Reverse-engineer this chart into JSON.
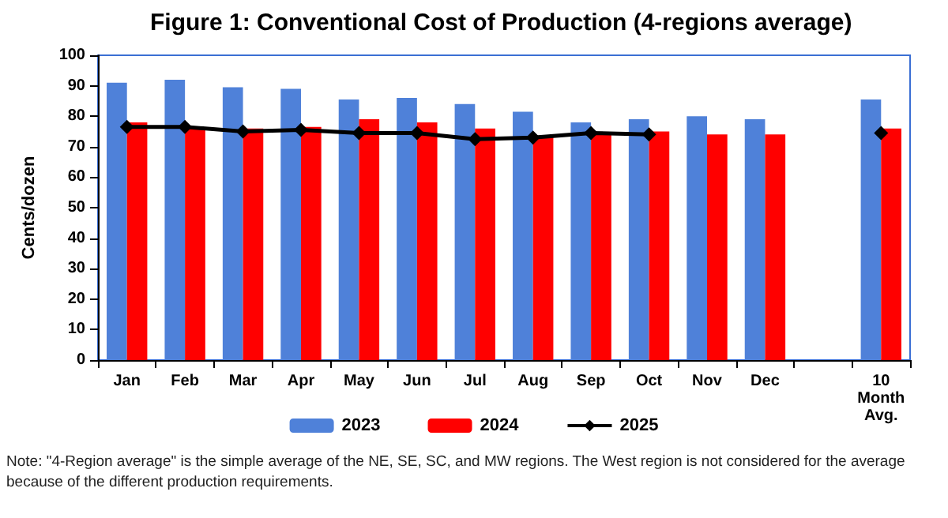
{
  "chart_data": {
    "type": "bar",
    "title": "Figure 1: Conventional Cost of Production (4-regions average)",
    "ylabel": "Cents/dozen",
    "categories": [
      "Jan",
      "Feb",
      "Mar",
      "Apr",
      "May",
      "Jun",
      "Jul",
      "Aug",
      "Sep",
      "Oct",
      "Nov",
      "Dec",
      null,
      "10 Month Avg."
    ],
    "series": [
      {
        "name": "2023",
        "color": "#4f81d9",
        "values": [
          91,
          92,
          89.5,
          89,
          85.5,
          86,
          84,
          81.5,
          78,
          79,
          80,
          79,
          null,
          85.5
        ]
      },
      {
        "name": "2024",
        "color": "#ff0000",
        "values": [
          78,
          76,
          76,
          76.5,
          79,
          78,
          76,
          73.5,
          74.5,
          75,
          74,
          74,
          null,
          76
        ]
      },
      {
        "name": "2025",
        "type": "line",
        "color": "#000000",
        "marker": "diamond",
        "values": [
          76.5,
          76.5,
          75,
          75.5,
          74.5,
          74.5,
          72.5,
          73,
          74.5,
          74,
          null,
          null,
          null,
          74.5
        ]
      }
    ],
    "ylim": [
      0,
      100
    ],
    "yticks": [
      0,
      10,
      20,
      30,
      40,
      50,
      60,
      70,
      80,
      90,
      100
    ],
    "grid": false,
    "legend": "bottom",
    "annotations": [
      "Note: \"4-Region average\" is the simple average of the NE, SE, SC, and MW regions. The West region is not considered for the average because of the different production requirements."
    ]
  }
}
